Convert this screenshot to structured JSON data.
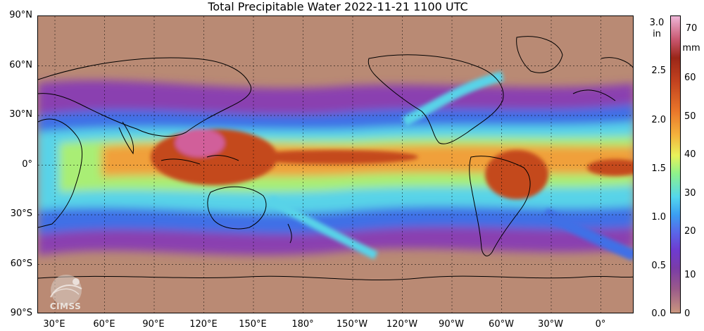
{
  "title": "Total Precipitable Water  2022-11-21 1100 UTC",
  "lat_labels": [
    "90°N",
    "60°N",
    "30°N",
    "0°",
    "30°S",
    "60°S",
    "90°S"
  ],
  "lon_labels": [
    "30°E",
    "60°E",
    "90°E",
    "120°E",
    "150°E",
    "180°",
    "150°W",
    "120°W",
    "90°W",
    "60°W",
    "30°W",
    "0°"
  ],
  "colorbar": {
    "left_unit_line1": "in",
    "left_unit_value": "3.0",
    "left_ticks": [
      "2.5",
      "2.0",
      "1.5",
      "1.0",
      "0.5",
      "0.0"
    ],
    "right_unit_value": "70",
    "right_unit_line2": "mm",
    "right_ticks": [
      "60",
      "50",
      "40",
      "30",
      "20",
      "10",
      "0"
    ]
  },
  "logo": {
    "text": "CIMSS"
  },
  "colors": {
    "dry": "#b98a74",
    "very_low": "#8a3fb0",
    "low": "#3f6fe6",
    "mid": "#58d3e8",
    "mid_high": "#a9ee74",
    "high": "#f0a03a",
    "very_high": "#c44a1e",
    "extreme": "#d15e9a"
  }
}
